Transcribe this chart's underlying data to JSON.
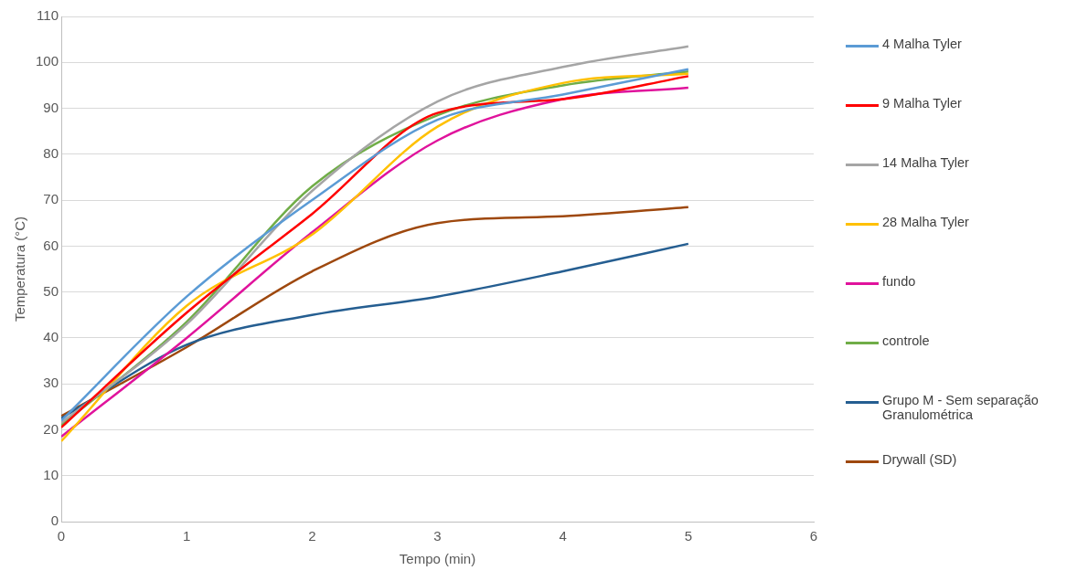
{
  "chart_data": {
    "type": "line",
    "xlabel": "Tempo (min)",
    "ylabel": "Temperatura (°C)",
    "x": [
      0,
      1,
      2,
      3,
      4,
      5
    ],
    "xlim": [
      0,
      6
    ],
    "xticks": [
      0,
      1,
      2,
      3,
      4,
      5,
      6
    ],
    "ylim": [
      0,
      110
    ],
    "yticks": [
      0,
      10,
      20,
      30,
      40,
      50,
      60,
      70,
      80,
      90,
      100,
      110
    ],
    "grid": "y",
    "legend": "right",
    "marker": "none",
    "line_style": "solid",
    "series": [
      {
        "name": "4 Malha Tyler",
        "color": "#5b9bd5",
        "values": [
          22,
          49,
          70,
          87.5,
          93,
          98.5
        ]
      },
      {
        "name": "9 Malha Tyler",
        "color": "#ff0000",
        "values": [
          20.5,
          45.5,
          67,
          89,
          92,
          97
        ]
      },
      {
        "name": "14 Malha Tyler",
        "color": "#a5a5a5",
        "values": [
          21.5,
          43,
          72,
          91.5,
          99,
          103.5
        ]
      },
      {
        "name": "28 Malha Tyler",
        "color": "#ffc000",
        "values": [
          17.5,
          47,
          62.5,
          86,
          95.5,
          97.5
        ]
      },
      {
        "name": "fundo",
        "color": "#e0139c",
        "values": [
          18.5,
          40,
          63,
          83,
          92,
          94.5
        ]
      },
      {
        "name": "controle",
        "color": "#70ad47",
        "values": [
          21,
          43.5,
          73,
          88.5,
          95,
          98
        ]
      },
      {
        "name": "Grupo M - Sem separação Granulométrica",
        "color": "#255e91",
        "values": [
          22.5,
          38.5,
          45,
          49,
          54.5,
          60.5
        ]
      },
      {
        "name": "Drywall (SD)",
        "color": "#9e480e",
        "values": [
          23,
          38,
          54.5,
          65,
          66.5,
          68.5
        ]
      }
    ]
  }
}
